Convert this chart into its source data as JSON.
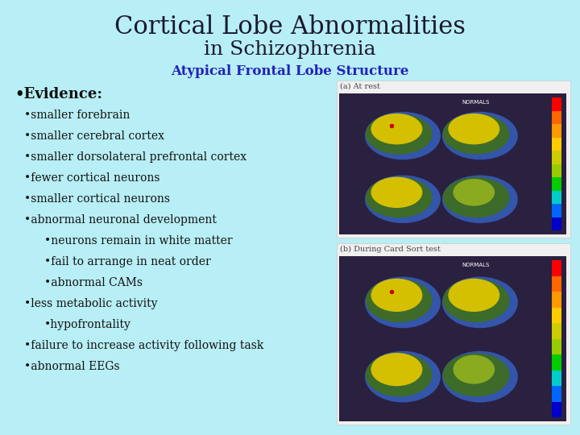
{
  "title_line1": "Cortical Lobe Abnormalities",
  "title_line2": "in Schizophrenia",
  "subtitle": "Atypical Frontal Lobe Structure",
  "background_color": "#b8eef5",
  "title_color": "#1a1a2e",
  "subtitle_color": "#2222bb",
  "bullet_color": "#111111",
  "title1_fontsize": 22,
  "title2_fontsize": 18,
  "subtitle_fontsize": 12,
  "evidence_fontsize": 13,
  "bullet_fontsize": 10,
  "img_caption1": "(a) At rest",
  "img_caption2": "(b) During Card Sort test",
  "img_bg": "#2a2040",
  "cbar_colors": [
    "#0000cc",
    "#0066ff",
    "#00cccc",
    "#00cc00",
    "#99cc00",
    "#cccc00",
    "#ffcc00",
    "#ff9900",
    "#ff6600",
    "#ff0000"
  ],
  "white_box_color": "#f0f0f0"
}
